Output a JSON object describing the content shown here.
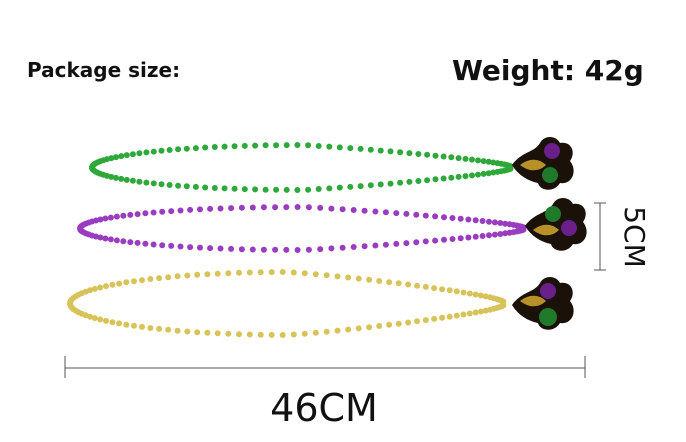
{
  "header": {
    "package_size": "Package size:",
    "weight": "Weight: 42g"
  },
  "dimensions": {
    "height": "5CM",
    "length": "46CM"
  }
}
